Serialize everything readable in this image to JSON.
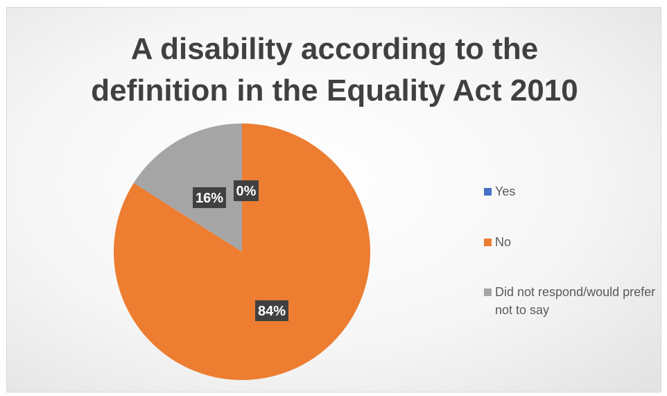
{
  "chart_data": {
    "type": "pie",
    "title": "A disability according to the\ndefinition in the Equality Act 2010",
    "categories": [
      "Yes",
      "No",
      "Did not respond/would prefer not to say"
    ],
    "values": [
      0,
      84,
      16
    ],
    "data_labels": [
      "0%",
      "84%",
      "16%"
    ],
    "colors": [
      "#4472C4",
      "#ED7D31",
      "#A5A5A5"
    ],
    "legend_position": "right"
  }
}
